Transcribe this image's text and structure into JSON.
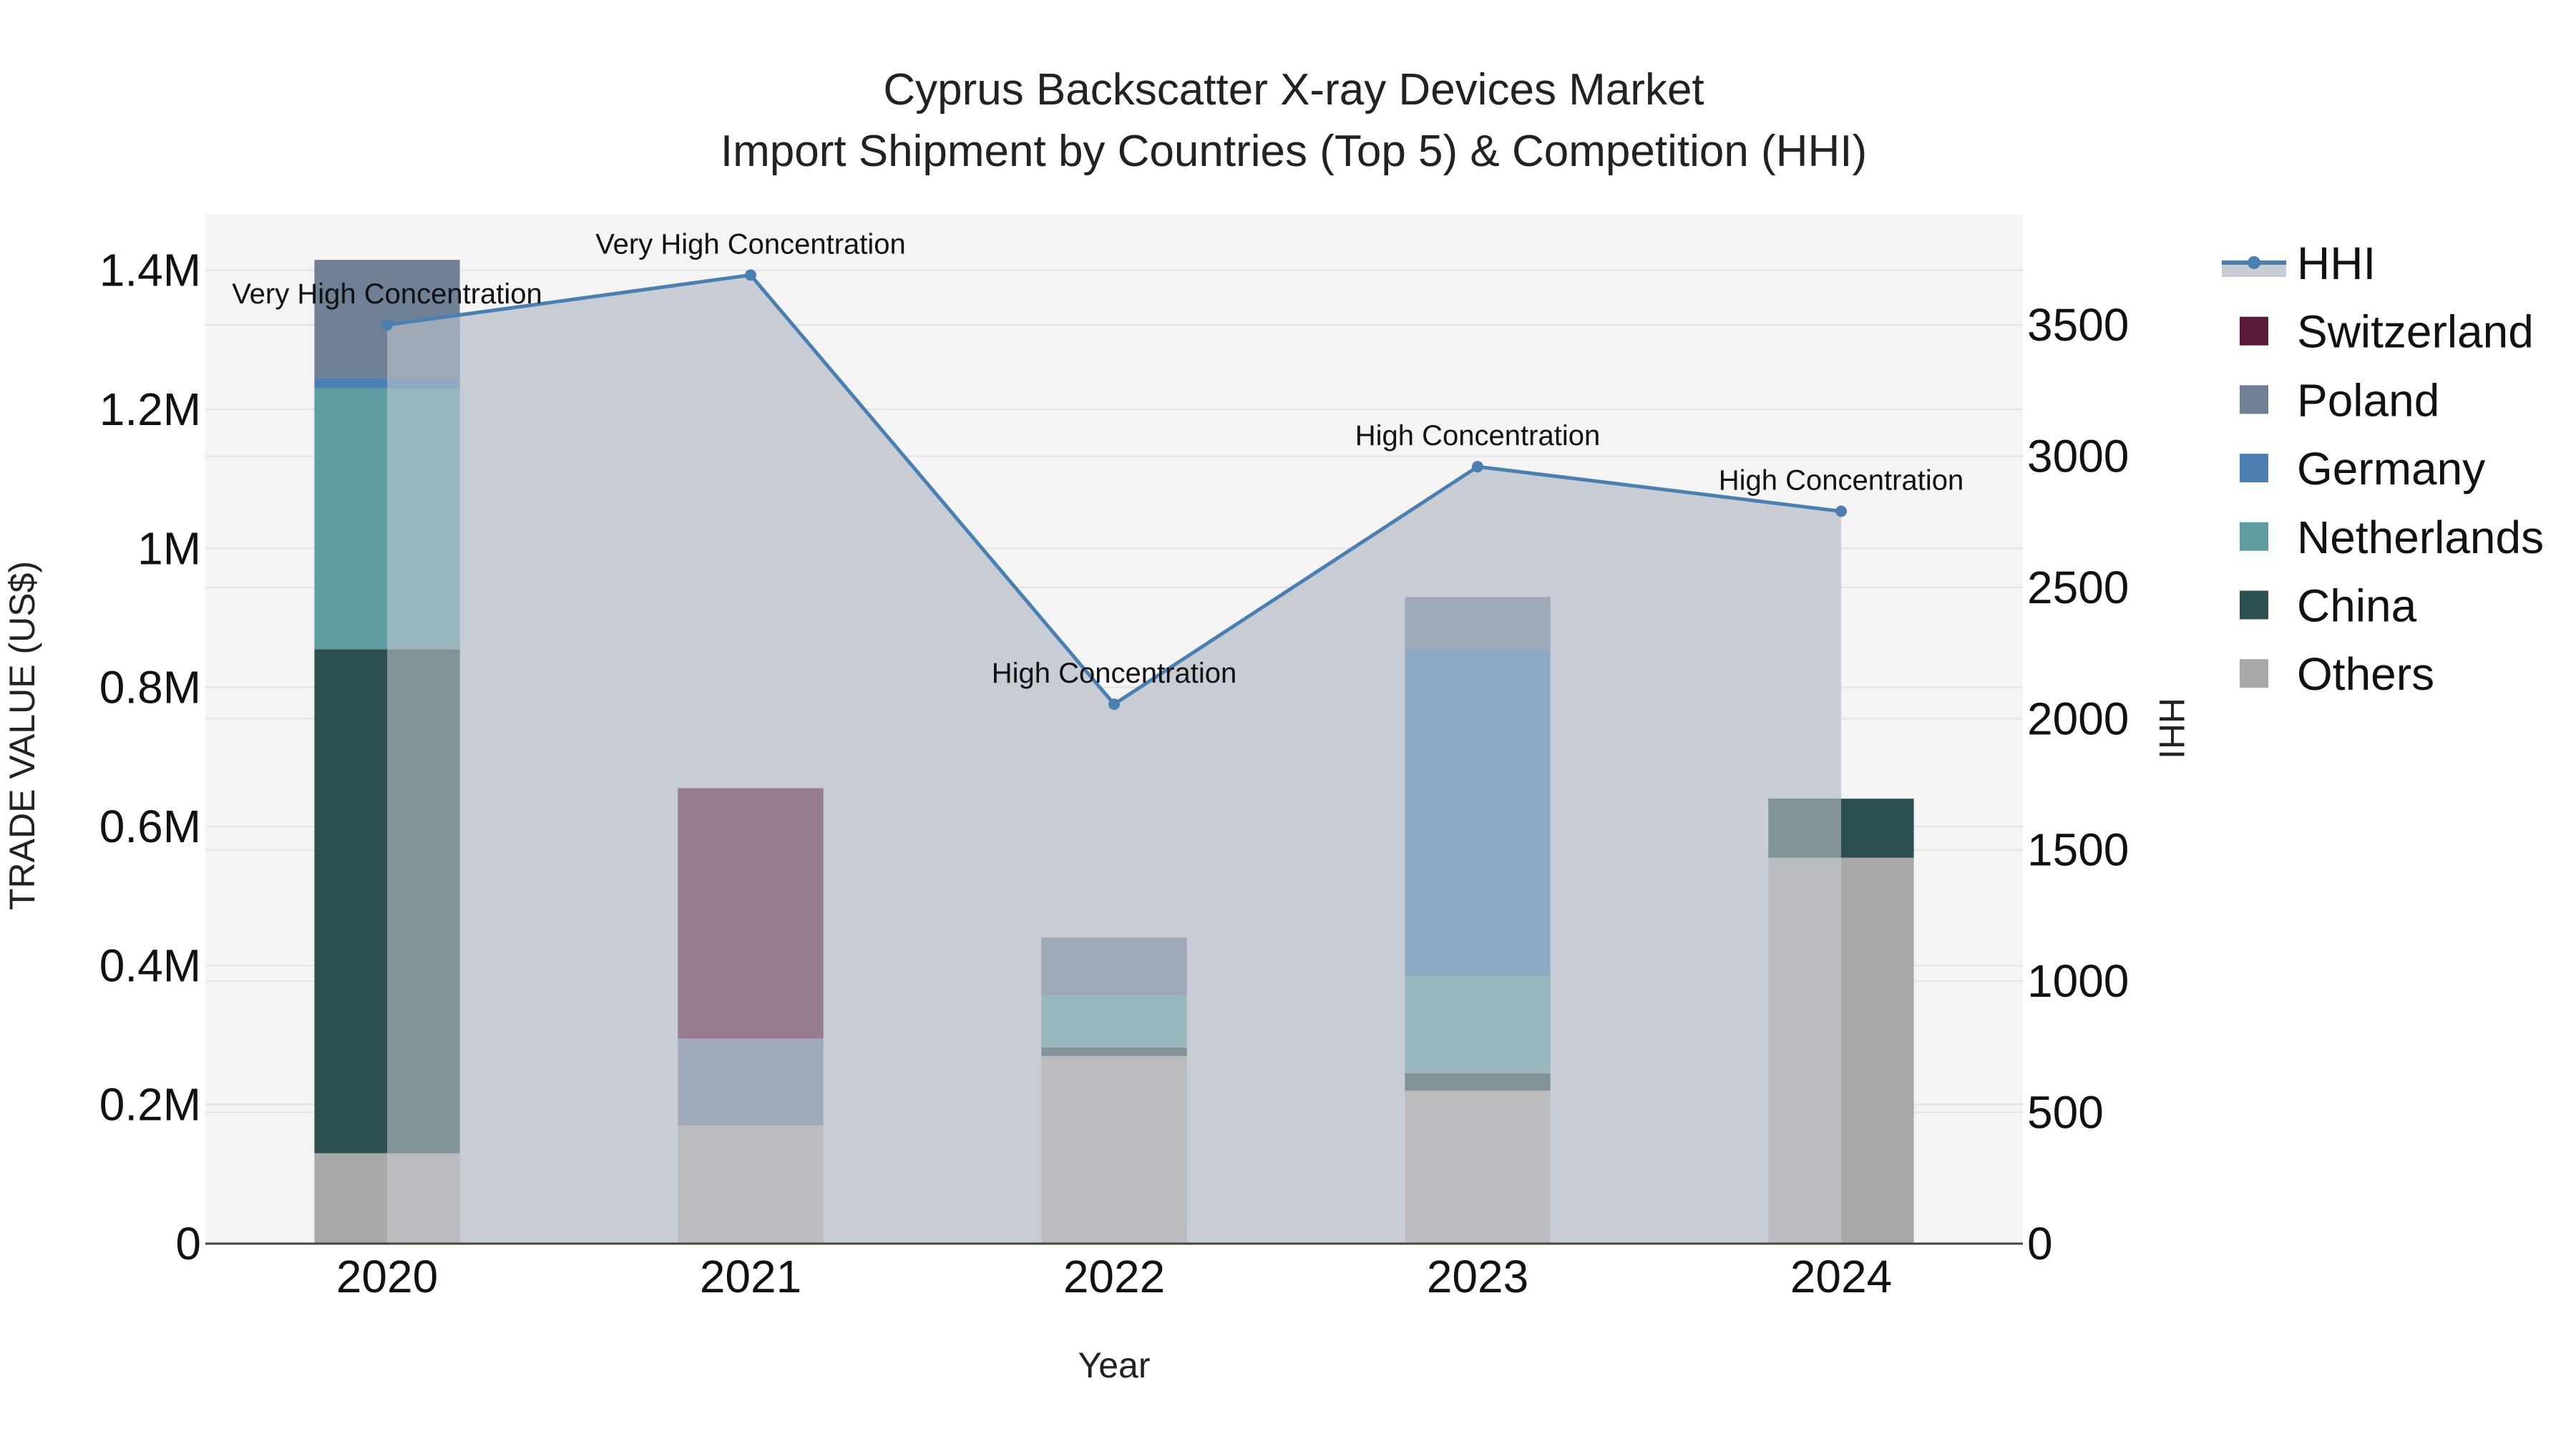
{
  "chart_data": {
    "type": "bar",
    "title_line1": "Cyprus Backscatter X-ray Devices Market",
    "title_line2": "Import Shipment by Countries (Top 5) & Competition (HHI)",
    "xlabel": "Year",
    "ylabel": "TRADE VALUE (US$)",
    "y2label": "HHI",
    "categories": [
      "2020",
      "2021",
      "2022",
      "2023",
      "2024"
    ],
    "ylim": [
      0,
      1480000
    ],
    "y_ticks": [
      0,
      200000,
      400000,
      600000,
      800000,
      1000000,
      1200000,
      1400000
    ],
    "y_tick_labels": [
      "0",
      "0.2M",
      "0.4M",
      "0.6M",
      "0.8M",
      "1M",
      "1.2M",
      "1.4M"
    ],
    "y2lim": [
      0,
      3920
    ],
    "y2_ticks": [
      0,
      500,
      1000,
      1500,
      2000,
      2500,
      3000,
      3500
    ],
    "y2_tick_labels": [
      "0",
      "500",
      "1000",
      "1500",
      "2000",
      "2500",
      "3000",
      "3500"
    ],
    "series": [
      {
        "name": "Others",
        "color": "#a8a8a8",
        "values": [
          130000,
          170000,
          270000,
          220000,
          555000
        ]
      },
      {
        "name": "China",
        "color": "#2e4f4f",
        "values": [
          725000,
          0,
          12000,
          25000,
          85000
        ]
      },
      {
        "name": "Netherlands",
        "color": "#5f9ea0",
        "values": [
          375000,
          0,
          75000,
          140000,
          0
        ]
      },
      {
        "name": "Germany",
        "color": "#4a7fb0",
        "values": [
          15000,
          0,
          0,
          470000,
          0
        ]
      },
      {
        "name": "Poland",
        "color": "#6f7f94",
        "values": [
          170000,
          125000,
          83000,
          75000,
          0
        ]
      },
      {
        "name": "Switzerland",
        "color": "#5c1a3a",
        "values": [
          0,
          360000,
          0,
          0,
          0
        ]
      }
    ],
    "legend_order": [
      "HHI",
      "Switzerland",
      "Poland",
      "Germany",
      "Netherlands",
      "China",
      "Others"
    ],
    "hhi": {
      "name": "HHI",
      "color": "#4a7fb0",
      "fill_color": "#c8ccd4",
      "values": [
        3500,
        3690,
        2055,
        2960,
        2790
      ],
      "labels": [
        "Very High Concentration",
        "Very High Concentration",
        "High Concentration",
        "High Concentration",
        "High Concentration"
      ]
    },
    "plot_bg": "#f4f4f4",
    "grid": true
  }
}
